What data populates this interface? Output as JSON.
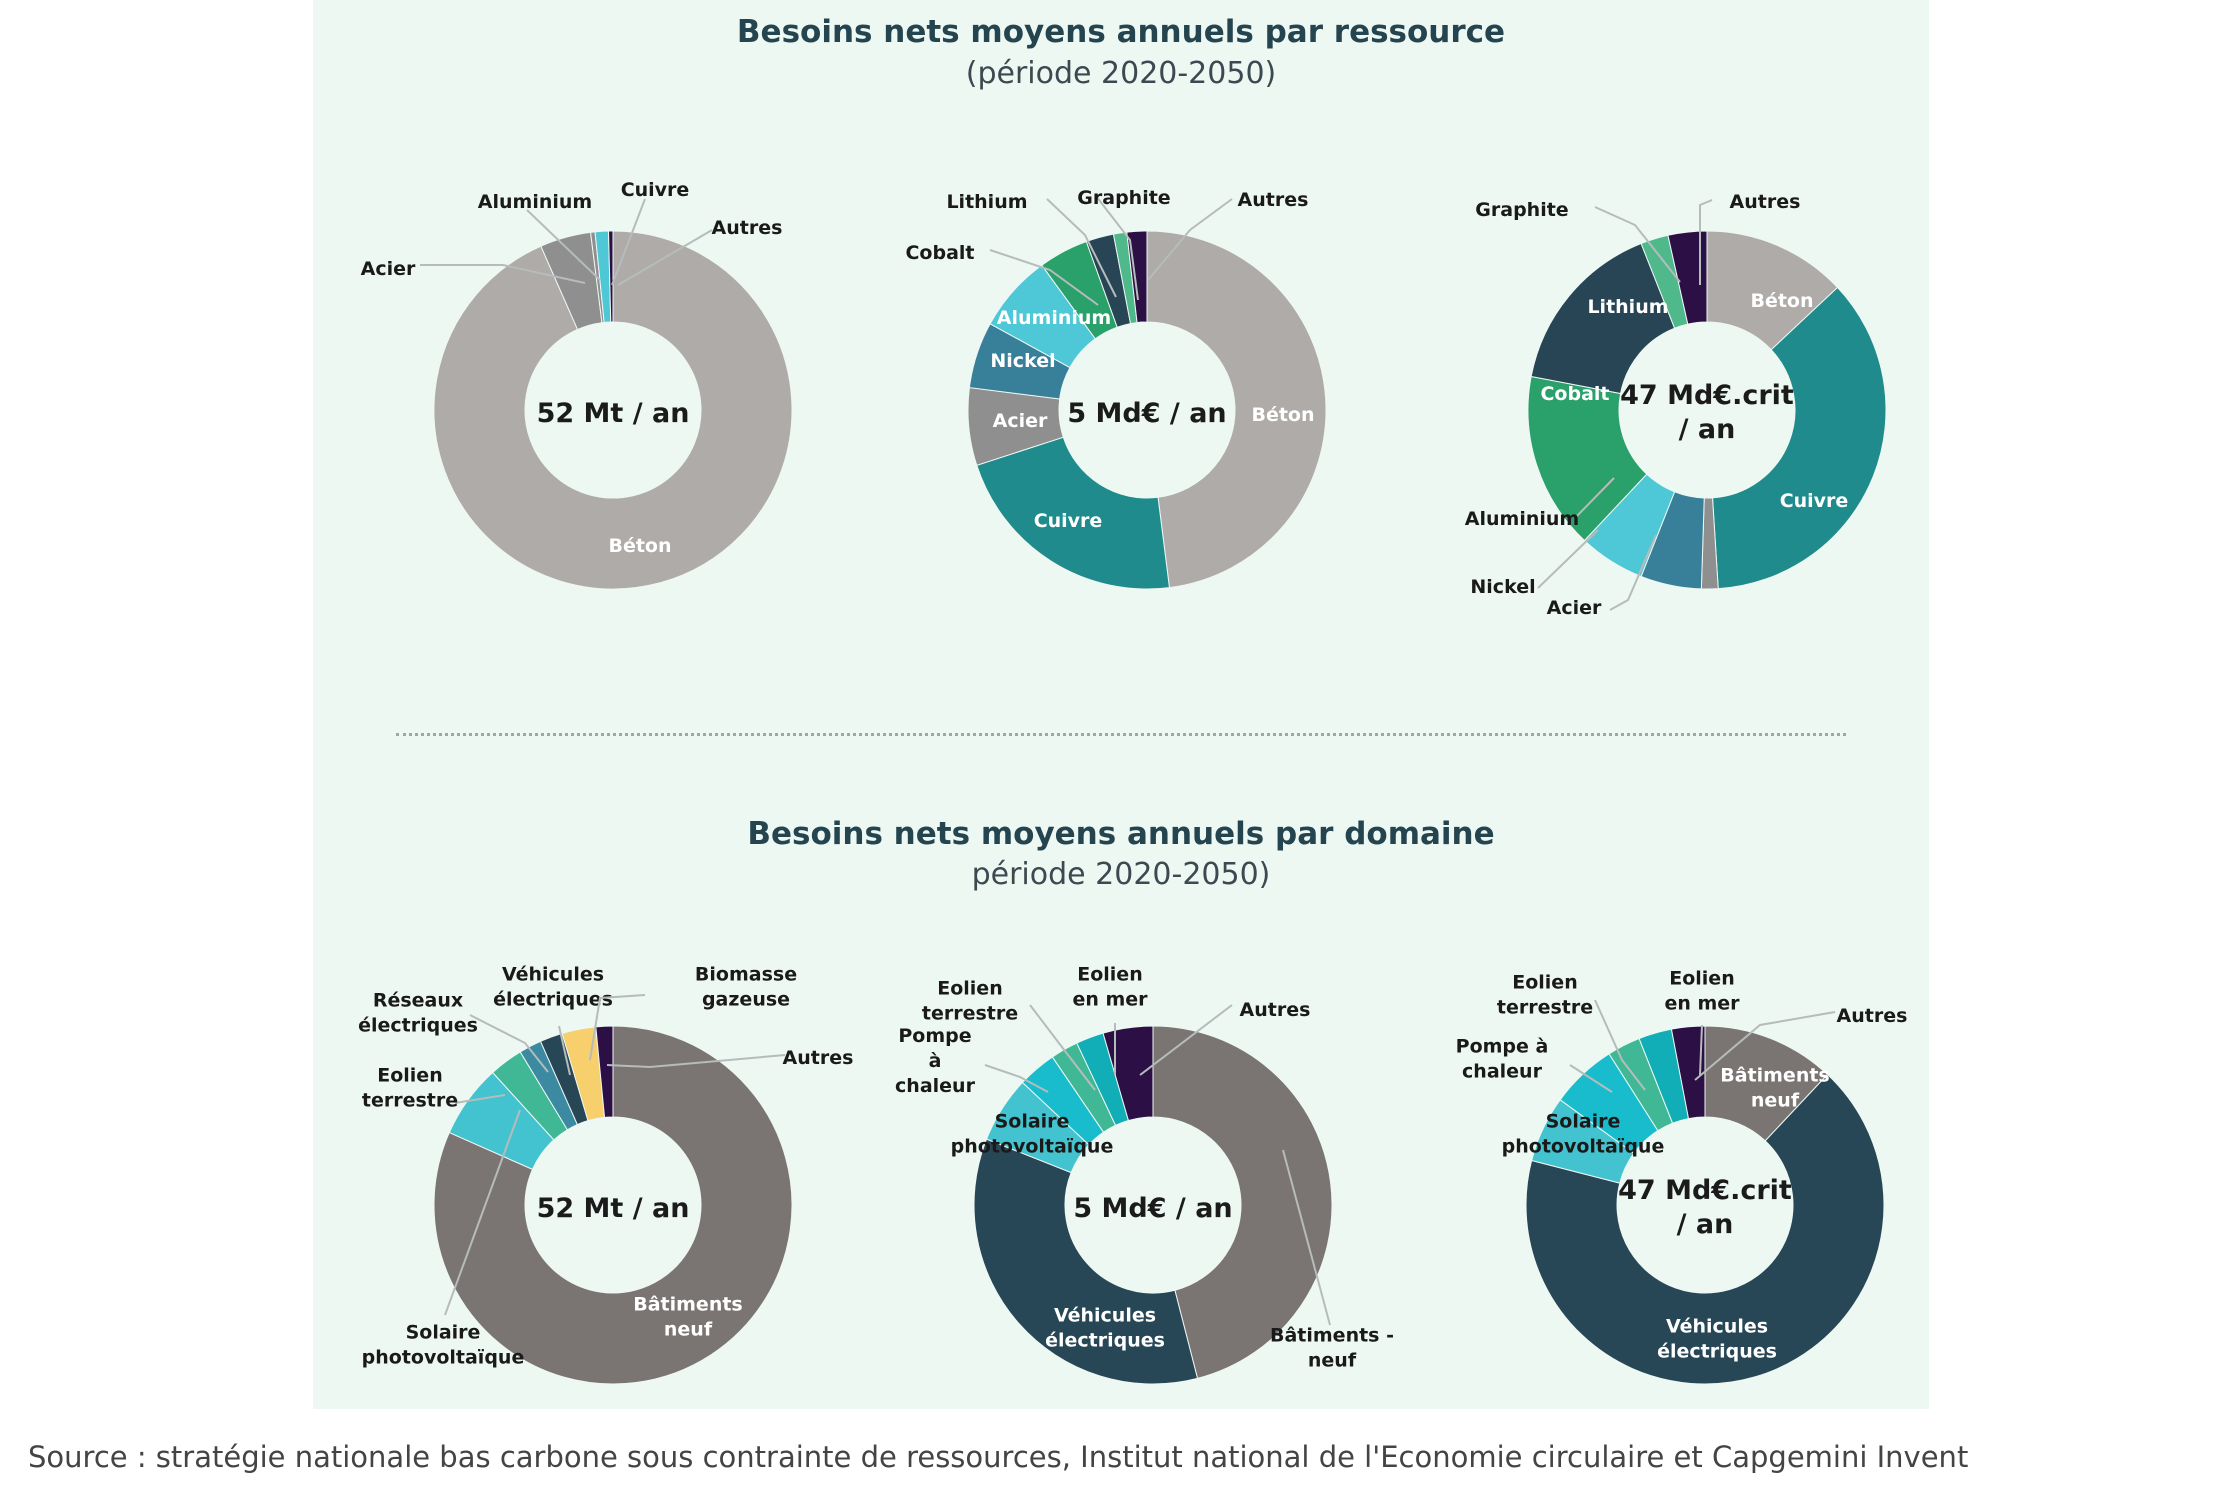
{
  "section1": {
    "title": "Besoins nets moyens annuels par ressource",
    "subtitle": "(période 2020-2050)"
  },
  "section2": {
    "title": "Besoins nets moyens annuels par domaine",
    "subtitle": "période 2020-2050)"
  },
  "source": "Source : stratégie nationale bas carbone sous contrainte de ressources, Institut national de l'Economie circulaire et Capgemini Invent",
  "colors": {
    "beton": "#aeaba8",
    "acier": "#8f8f8f",
    "aluminium": "#4ec7d7",
    "cuivre": "#1f8b8c",
    "autres": "#2c0f45",
    "nickel": "#38809a",
    "cobalt": "#2aa06a",
    "lithium": "#274555",
    "graphite": "#4fb98c",
    "batiments": "#7a7572",
    "vehicules": "#274656",
    "solaire": "#43c3d0",
    "eolien_terrestre": "#40b896",
    "eolien_mer": "#11aeb8",
    "pompe": "#19bccc",
    "reseaux": "#3b8aa2",
    "biomasse": "#f7cf6c",
    "label_light": "#ffffff",
    "label_dark": "#1a1a1a"
  },
  "chart_data": [
    {
      "type": "pie",
      "title": "Besoins nets moyens annuels par ressource",
      "center_label": [
        "52 Mt / an"
      ],
      "slices": [
        {
          "label": "Béton",
          "value": 93.4,
          "color": "beton"
        },
        {
          "label": "Acier",
          "value": 4.6,
          "color": "acier"
        },
        {
          "label": "Aluminium",
          "value": 0.4,
          "color": "acier"
        },
        {
          "label": "Cuivre",
          "value": 1.2,
          "color": "aluminium"
        },
        {
          "label": "Autres",
          "value": 0.4,
          "color": "autres"
        }
      ]
    },
    {
      "type": "pie",
      "title": "Besoins nets moyens annuels par ressource",
      "center_label": [
        "5 Md€ / an"
      ],
      "slices": [
        {
          "label": "Béton",
          "value": 48,
          "color": "beton"
        },
        {
          "label": "Cuivre",
          "value": 22,
          "color": "cuivre"
        },
        {
          "label": "Acier",
          "value": 7,
          "color": "acier"
        },
        {
          "label": "Nickel",
          "value": 6,
          "color": "nickel"
        },
        {
          "label": "Aluminium",
          "value": 7,
          "color": "aluminium"
        },
        {
          "label": "Cobalt",
          "value": 4.5,
          "color": "cobalt"
        },
        {
          "label": "Lithium",
          "value": 2.5,
          "color": "lithium"
        },
        {
          "label": "Graphite",
          "value": 1.2,
          "color": "graphite"
        },
        {
          "label": "Autres",
          "value": 1.8,
          "color": "autres"
        }
      ]
    },
    {
      "type": "pie",
      "title": "Besoins nets moyens annuels par ressource",
      "center_label": [
        "47 Md€.crit",
        "/ an"
      ],
      "slices": [
        {
          "label": "Béton",
          "value": 13,
          "color": "beton"
        },
        {
          "label": "Cuivre",
          "value": 36,
          "color": "cuivre"
        },
        {
          "label": "Acier",
          "value": 1.5,
          "color": "acier"
        },
        {
          "label": "Nickel",
          "value": 5.5,
          "color": "nickel"
        },
        {
          "label": "Aluminium",
          "value": 6,
          "color": "aluminium"
        },
        {
          "label": "Cobalt",
          "value": 16,
          "color": "cobalt"
        },
        {
          "label": "Lithium",
          "value": 16,
          "color": "lithium"
        },
        {
          "label": "Graphite",
          "value": 2.5,
          "color": "graphite"
        },
        {
          "label": "Autres",
          "value": 3.5,
          "color": "autres"
        }
      ]
    },
    {
      "type": "pie",
      "title": "Besoins nets moyens annuels par domaine",
      "center_label": [
        "52 Mt / an"
      ],
      "slices": [
        {
          "label": "Bâtiments neuf",
          "value": 80,
          "color": "batiments"
        },
        {
          "label": "Solaire photovoltaïque",
          "value": 6.5,
          "color": "solaire"
        },
        {
          "label": "Eolien terrestre",
          "value": 3,
          "color": "eolien_terrestre"
        },
        {
          "label": "Réseaux électriques",
          "value": 2,
          "color": "reseaux"
        },
        {
          "label": "Véhicules électriques",
          "value": 2,
          "color": "vehicules"
        },
        {
          "label": "Biomasse gazeuse",
          "value": 3,
          "color": "biomasse"
        },
        {
          "label": "Autres",
          "value": 1.5,
          "color": "autres"
        }
      ]
    },
    {
      "type": "pie",
      "title": "Besoins nets moyens annuels par domaine",
      "center_label": [
        "5 Md€ / an"
      ],
      "slices": [
        {
          "label": "Bâtiments - neuf",
          "value": 46,
          "color": "batiments"
        },
        {
          "label": "Véhicules électriques",
          "value": 35,
          "color": "vehicules"
        },
        {
          "label": "Solaire photovoltaïque",
          "value": 6,
          "color": "solaire"
        },
        {
          "label": "Pompe à chaleur",
          "value": 3.5,
          "color": "pompe"
        },
        {
          "label": "Eolien terrestre",
          "value": 2.5,
          "color": "eolien_terrestre"
        },
        {
          "label": "Eolien en mer",
          "value": 2.5,
          "color": "eolien_mer"
        },
        {
          "label": "Autres",
          "value": 4.5,
          "color": "autres"
        }
      ]
    },
    {
      "type": "pie",
      "title": "Besoins nets moyens annuels par domaine",
      "center_label": [
        "47 Md€.crit",
        "/ an"
      ],
      "slices": [
        {
          "label": "Bâtiments neuf",
          "value": 12,
          "color": "batiments"
        },
        {
          "label": "Véhicules électriques",
          "value": 67,
          "color": "vehicules"
        },
        {
          "label": "Solaire photovoltaïque",
          "value": 6,
          "color": "solaire"
        },
        {
          "label": "Pompe à chaleur",
          "value": 6,
          "color": "pompe"
        },
        {
          "label": "Eolien terrestre",
          "value": 3,
          "color": "eolien_terrestre"
        },
        {
          "label": "Eolien en mer",
          "value": 3,
          "color": "eolien_mer"
        },
        {
          "label": "Autres",
          "value": 3,
          "color": "autres"
        }
      ]
    }
  ]
}
